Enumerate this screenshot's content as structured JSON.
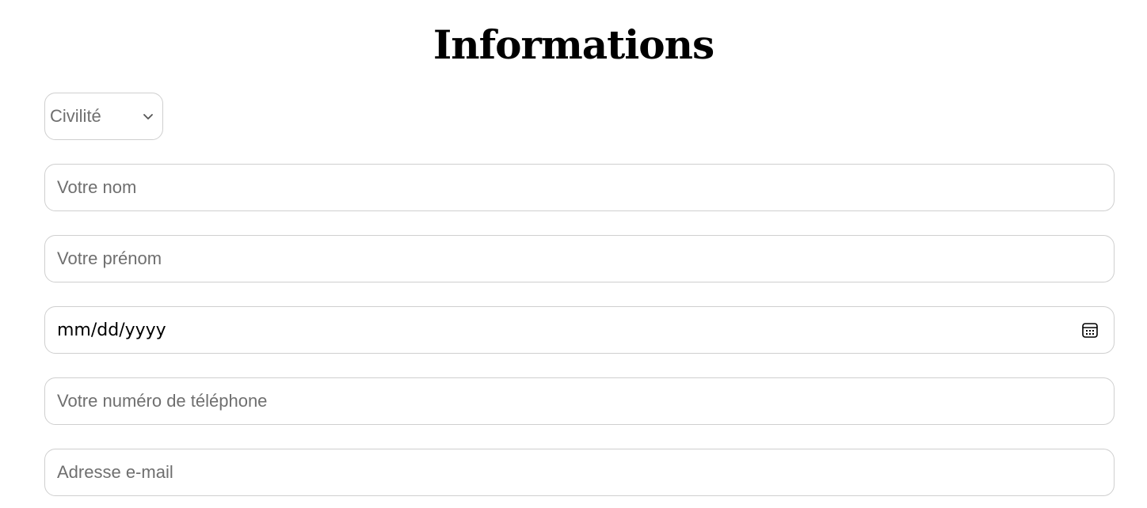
{
  "page": {
    "title": "Informations"
  },
  "form": {
    "civility": {
      "selected": "Civilité",
      "icon": "chevron-down-icon"
    },
    "last_name": {
      "placeholder": "Votre nom"
    },
    "first_name": {
      "placeholder": "Votre prénom"
    },
    "birth_date": {
      "value": "mm/dd/yyyy",
      "icon": "calendar-icon"
    },
    "phone": {
      "placeholder": "Votre numéro de téléphone"
    },
    "email": {
      "placeholder": "Adresse e-mail"
    }
  },
  "colors": {
    "border": "#cfcfcf",
    "placeholder": "#6f6f6f",
    "text": "#000000",
    "background": "#ffffff"
  }
}
